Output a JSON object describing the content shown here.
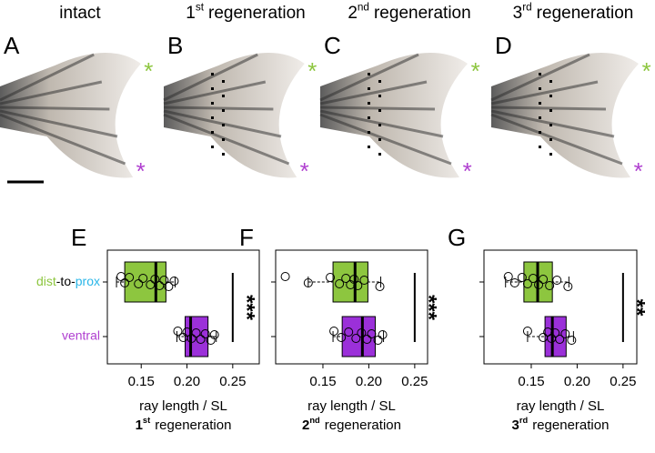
{
  "panels": [
    {
      "letter": "A",
      "title": {
        "text": "intact"
      }
    },
    {
      "letter": "B",
      "title": {
        "number": "1",
        "suffix": "st",
        "text": "regeneration"
      }
    },
    {
      "letter": "C",
      "title": {
        "number": "2",
        "suffix": "nd",
        "text": "regeneration"
      }
    },
    {
      "letter": "D",
      "title": {
        "number": "3",
        "suffix": "rd",
        "text": "regeneration"
      }
    }
  ],
  "asterisk": "*",
  "chart_data": [
    {
      "type": "box",
      "letter": "E",
      "xlabel": "ray length / SL",
      "subtitle": {
        "number": "1",
        "suffix": "st",
        "text": "regeneration"
      },
      "categories": [
        [
          "dist",
          "-to-",
          "prox"
        ],
        "ventral"
      ],
      "xlim": [
        0.113,
        0.279
      ],
      "xticks": [
        {
          "value": 0.15,
          "label": "0.15"
        },
        {
          "value": 0.2,
          "label": "0.20"
        },
        {
          "value": 0.25,
          "label": "0.25"
        }
      ],
      "significance": "***",
      "boxes": [
        {
          "color": "#8dc63f",
          "min": 0.123,
          "q1": 0.132,
          "median": 0.166,
          "q3": 0.177,
          "max": 0.187,
          "points": [
            0.128,
            0.132,
            0.137,
            0.147,
            0.152,
            0.16,
            0.165,
            0.17,
            0.175,
            0.18,
            0.186
          ]
        },
        {
          "color": "#9b30d9",
          "min": 0.189,
          "q1": 0.198,
          "median": 0.204,
          "q3": 0.223,
          "max": 0.232,
          "points": [
            0.19,
            0.196,
            0.2,
            0.205,
            0.21,
            0.215,
            0.22,
            0.226,
            0.23
          ]
        }
      ]
    },
    {
      "type": "box",
      "letter": "F",
      "xlabel": "ray length / SL",
      "subtitle": {
        "number": "2",
        "suffix": "nd",
        "text": "regeneration"
      },
      "xlim": [
        0.0985,
        0.264
      ],
      "xticks": [
        {
          "value": 0.15,
          "label": "0.15"
        },
        {
          "value": 0.2,
          "label": "0.20"
        },
        {
          "value": 0.25,
          "label": "0.25"
        }
      ],
      "significance": "***",
      "boxes": [
        {
          "color": "#8dc63f",
          "min": 0.134,
          "q1": 0.161,
          "median": 0.185,
          "q3": 0.199,
          "max": 0.213,
          "points": [
            0.109,
            0.134,
            0.158,
            0.168,
            0.175,
            0.18,
            0.184,
            0.188,
            0.195,
            0.212
          ]
        },
        {
          "color": "#9b30d9",
          "min": 0.161,
          "q1": 0.171,
          "median": 0.193,
          "q3": 0.207,
          "max": 0.216,
          "points": [
            0.162,
            0.17,
            0.178,
            0.186,
            0.192,
            0.198,
            0.203,
            0.21,
            0.215
          ]
        }
      ]
    },
    {
      "type": "box",
      "letter": "G",
      "xlabel": "ray length / SL",
      "subtitle": {
        "number": "3",
        "suffix": "rd",
        "text": "regeneration"
      },
      "xlim": [
        0.0985,
        0.265
      ],
      "xticks": [
        {
          "value": 0.15,
          "label": "0.15"
        },
        {
          "value": 0.2,
          "label": "0.20"
        },
        {
          "value": 0.25,
          "label": "0.25"
        }
      ],
      "significance": "**",
      "boxes": [
        {
          "color": "#8dc63f",
          "min": 0.122,
          "q1": 0.142,
          "median": 0.157,
          "q3": 0.173,
          "max": 0.191,
          "points": [
            0.125,
            0.132,
            0.14,
            0.146,
            0.152,
            0.158,
            0.163,
            0.17,
            0.178,
            0.19
          ]
        },
        {
          "color": "#9b30d9",
          "min": 0.146,
          "q1": 0.165,
          "median": 0.173,
          "q3": 0.188,
          "max": 0.196,
          "points": [
            0.146,
            0.163,
            0.168,
            0.172,
            0.176,
            0.181,
            0.187,
            0.194
          ]
        }
      ]
    }
  ]
}
